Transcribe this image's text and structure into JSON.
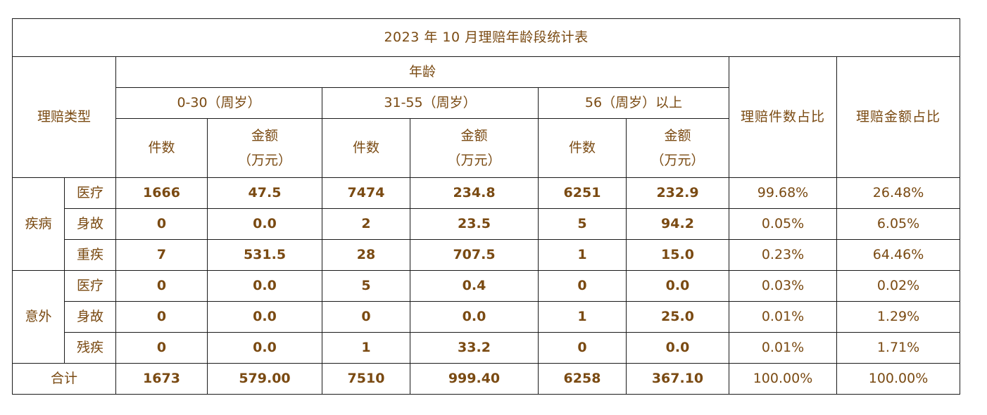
{
  "title": "2023 年 10 月理赔年龄段统计表",
  "header": {
    "claim_type": "理赔类型",
    "age": "年龄",
    "groups": [
      "0-30（周岁）",
      "31-55（周岁）",
      "56（周岁）以上"
    ],
    "count": "件数",
    "amount_line1": "金额",
    "amount_line2": "（万元）",
    "count_ratio": "理赔件数占比",
    "amount_ratio": "理赔金额占比"
  },
  "groups": [
    {
      "label": "疾病",
      "rows": [
        {
          "type": "医疗",
          "values": [
            "1666",
            "47.5",
            "7474",
            "234.8",
            "6251",
            "232.9"
          ],
          "count_pct": "99.68%",
          "amount_pct": "26.48%"
        },
        {
          "type": "身故",
          "values": [
            "0",
            "0.0",
            "2",
            "23.5",
            "5",
            "94.2"
          ],
          "count_pct": "0.05%",
          "amount_pct": "6.05%"
        },
        {
          "type": "重疾",
          "values": [
            "7",
            "531.5",
            "28",
            "707.5",
            "1",
            "15.0"
          ],
          "count_pct": "0.23%",
          "amount_pct": "64.46%"
        }
      ]
    },
    {
      "label": "意外",
      "rows": [
        {
          "type": "医疗",
          "values": [
            "0",
            "0.0",
            "5",
            "0.4",
            "0",
            "0.0"
          ],
          "count_pct": "0.03%",
          "amount_pct": "0.02%"
        },
        {
          "type": "身故",
          "values": [
            "0",
            "0.0",
            "0",
            "0.0",
            "1",
            "25.0"
          ],
          "count_pct": "0.01%",
          "amount_pct": "1.29%"
        },
        {
          "type": "残疾",
          "values": [
            "0",
            "0.0",
            "1",
            "33.2",
            "0",
            "0.0"
          ],
          "count_pct": "0.01%",
          "amount_pct": "1.71%"
        }
      ]
    }
  ],
  "total": {
    "label": "合计",
    "values": [
      "1673",
      "579.00",
      "7510",
      "999.40",
      "6258",
      "367.10"
    ],
    "count_pct": "100.00%",
    "amount_pct": "100.00%"
  }
}
